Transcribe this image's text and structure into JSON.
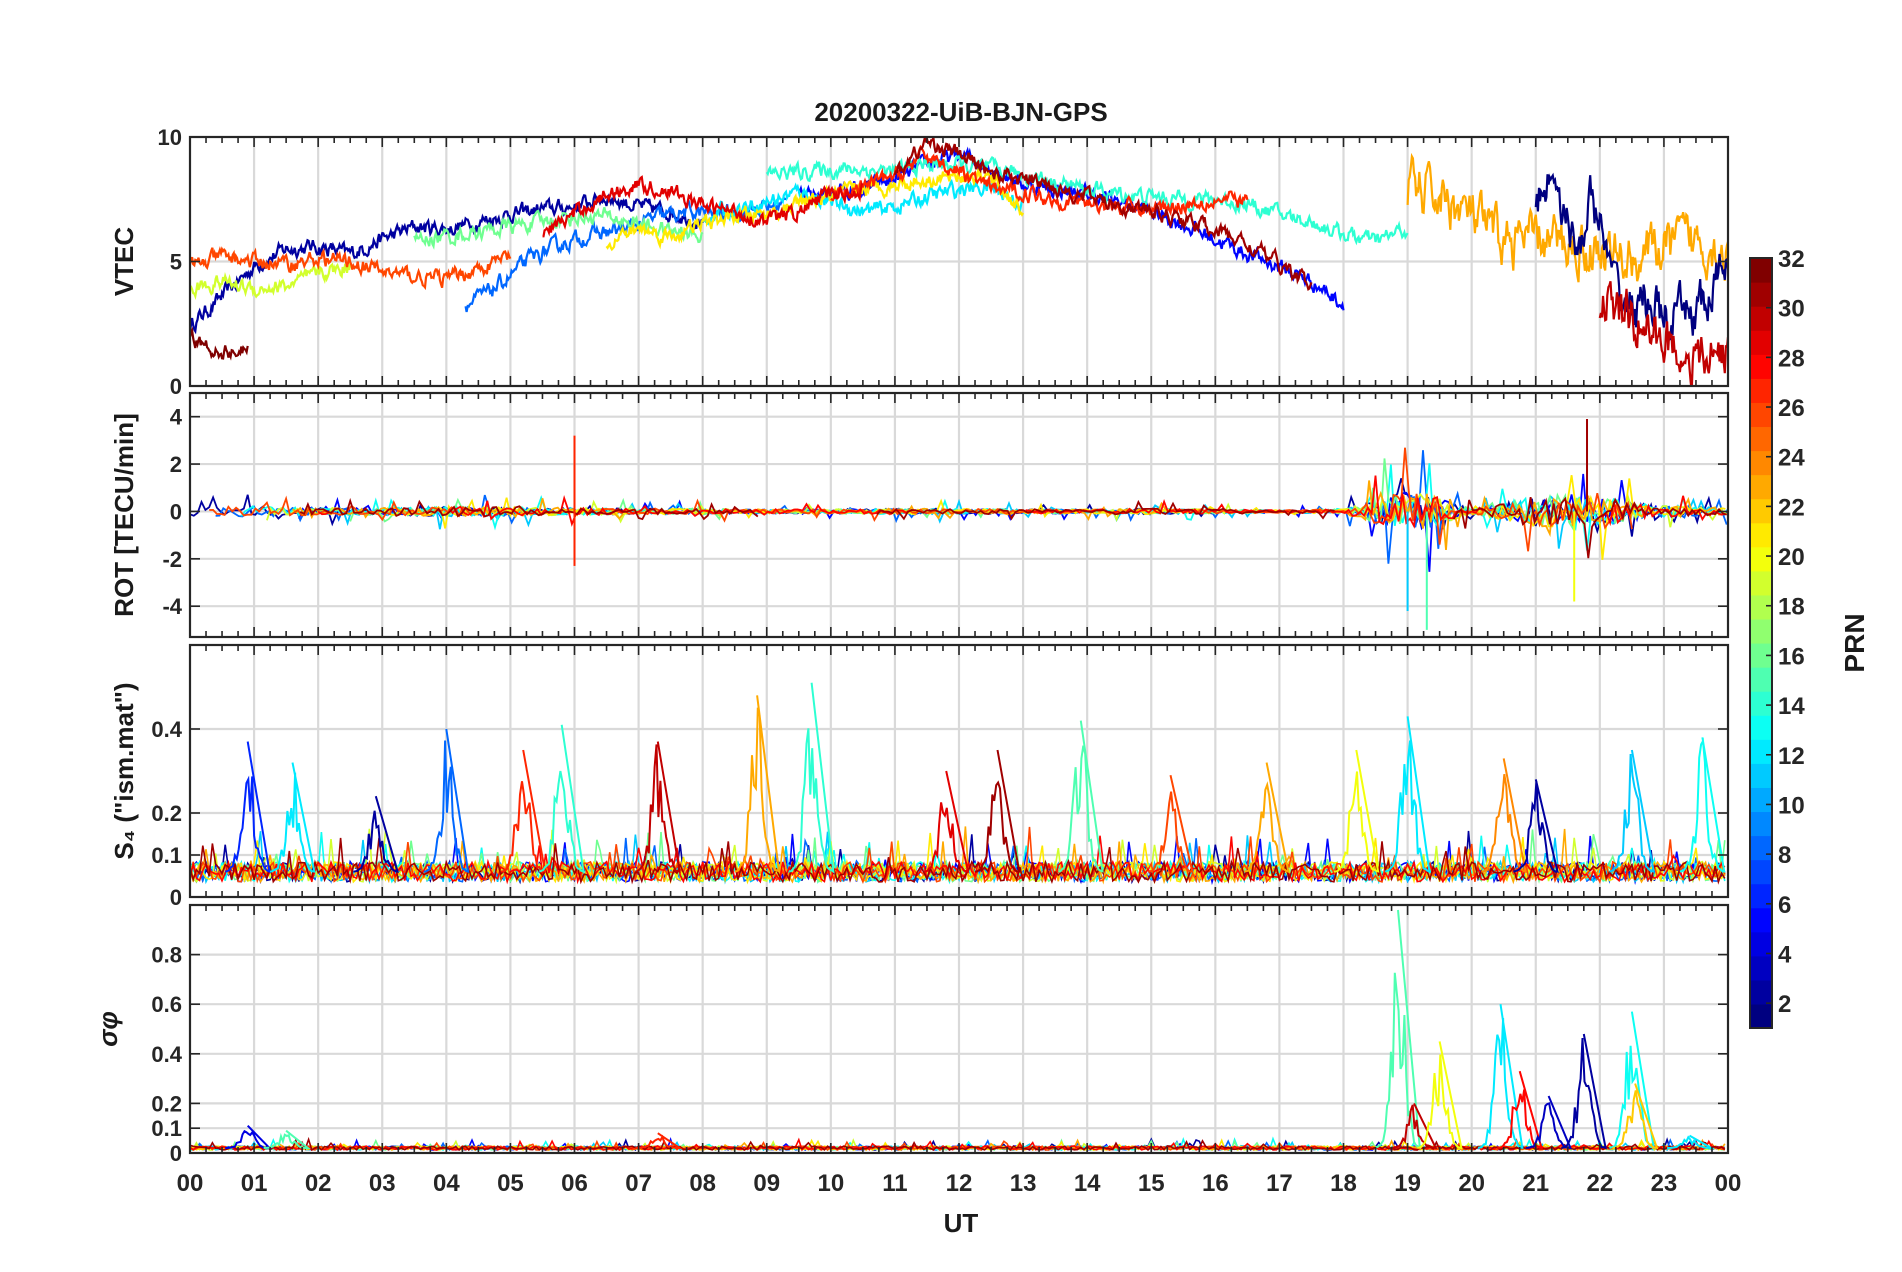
{
  "chart_data": {
    "type": "line",
    "title": "20200322-UiB-BJN-GPS",
    "xlabel": "UT",
    "x_range": [
      0,
      24
    ],
    "x_tick_labels": [
      "00",
      "01",
      "02",
      "03",
      "04",
      "05",
      "06",
      "07",
      "08",
      "09",
      "10",
      "11",
      "12",
      "13",
      "14",
      "15",
      "16",
      "17",
      "18",
      "19",
      "20",
      "21",
      "22",
      "23",
      "00"
    ],
    "colorbar": {
      "label": "PRN",
      "colormap": "jet",
      "range": [
        1,
        32
      ],
      "tick_labels": [
        "32",
        "30",
        "28",
        "26",
        "24",
        "22",
        "20",
        "18",
        "16",
        "14",
        "12",
        "10",
        "8",
        "6",
        "4",
        "2"
      ]
    },
    "panels": [
      {
        "id": "vtec",
        "ylabel": "VTEC",
        "ylim": [
          0,
          10
        ],
        "yticks": [
          0,
          5,
          10
        ],
        "ytick_labels": [
          "0",
          "5",
          "10"
        ],
        "series": [
          {
            "name": "PRN 2",
            "prn": 2,
            "hours": [
              0.0,
              0.5,
              1.0,
              1.5,
              2.0,
              2.5,
              3.0,
              3.5,
              4.0,
              4.5,
              5.0,
              5.5,
              6.0,
              6.5,
              7.0,
              7.5,
              8.0
            ],
            "values": [
              2.4,
              3.6,
              4.8,
              5.5,
              5.6,
              5.3,
              5.9,
              6.4,
              6.3,
              6.6,
              6.9,
              7.1,
              7.2,
              7.6,
              7.2,
              7.0,
              6.6
            ]
          },
          {
            "name": "PRN 5",
            "prn": 5,
            "hours": [
              9.5,
              10.0,
              10.5,
              11.0,
              11.5,
              12.0,
              12.5,
              13.0,
              13.5,
              14.0,
              14.5,
              15.0,
              15.5,
              16.0,
              16.5,
              17.0,
              17.5,
              18.0
            ],
            "values": [
              7.5,
              7.8,
              7.9,
              8.3,
              8.9,
              9.3,
              8.8,
              8.1,
              7.9,
              7.7,
              7.4,
              7.0,
              6.5,
              5.9,
              5.3,
              4.8,
              4.2,
              3.3
            ]
          },
          {
            "name": "PRN 8",
            "prn": 8,
            "hours": [
              4.3,
              4.8,
              5.3,
              5.8,
              6.3,
              6.8,
              7.3,
              7.8,
              8.3,
              8.8,
              9.3
            ],
            "values": [
              3.2,
              4.0,
              5.1,
              5.7,
              6.1,
              6.3,
              6.8,
              7.0,
              6.9,
              7.1,
              7.3
            ]
          },
          {
            "name": "PRN 12",
            "prn": 12,
            "hours": [
              8.0,
              8.5,
              9.0,
              9.5,
              10.0,
              10.5,
              11.0,
              11.5,
              12.0,
              12.5,
              13.0
            ],
            "values": [
              6.8,
              7.1,
              7.4,
              7.8,
              7.4,
              7.0,
              7.2,
              7.6,
              7.9,
              8.0,
              7.3
            ]
          },
          {
            "name": "PRN 14",
            "prn": 14,
            "hours": [
              9.0,
              9.5,
              10.0,
              10.5,
              11.0,
              11.5,
              12.0,
              12.5,
              13.0,
              13.5,
              14.0,
              14.5,
              15.0,
              15.5,
              16.0,
              16.5,
              17.0,
              17.5,
              18.0,
              18.5,
              19.0
            ],
            "values": [
              8.5,
              8.6,
              8.7,
              8.7,
              8.6,
              8.9,
              8.9,
              8.7,
              8.5,
              8.2,
              7.9,
              7.7,
              7.6,
              7.5,
              7.5,
              7.3,
              6.9,
              6.6,
              6.1,
              5.8,
              6.3
            ]
          },
          {
            "name": "PRN 16",
            "prn": 16,
            "hours": [
              3.5,
              4.0,
              4.5,
              5.0,
              5.5,
              6.0,
              6.5,
              7.0,
              7.5,
              8.0
            ],
            "values": [
              5.8,
              6.0,
              6.2,
              6.4,
              6.6,
              6.8,
              6.8,
              6.5,
              6.2,
              6.0
            ]
          },
          {
            "name": "PRN 19",
            "prn": 19,
            "hours": [
              0.0,
              0.5,
              1.0,
              1.5,
              2.0,
              2.5
            ],
            "values": [
              3.9,
              4.2,
              3.9,
              4.0,
              4.5,
              4.8
            ]
          },
          {
            "name": "PRN 21",
            "prn": 21,
            "hours": [
              6.5,
              7.0,
              7.5,
              8.0,
              8.5,
              9.0,
              9.5,
              10.0,
              10.5,
              11.0,
              11.5,
              12.0,
              12.5,
              13.0
            ],
            "values": [
              5.8,
              6.3,
              6.0,
              6.5,
              6.8,
              6.9,
              7.3,
              7.6,
              7.9,
              8.1,
              8.3,
              8.5,
              8.3,
              7.0
            ]
          },
          {
            "name": "PRN 23",
            "prn": 23,
            "hours": [
              19.0,
              19.5,
              20.0,
              20.5,
              21.0,
              21.5,
              22.0,
              22.5,
              23.0,
              23.5,
              24.0
            ],
            "values": [
              8.0,
              7.6,
              6.8,
              5.8,
              5.9,
              5.7,
              5.4,
              5.1,
              5.6,
              5.9,
              5.4
            ]
          },
          {
            "name": "PRN 26",
            "prn": 26,
            "hours": [
              0.0,
              0.5,
              1.0,
              1.5,
              2.0,
              2.5,
              3.0,
              3.5,
              4.0,
              4.5,
              5.0
            ],
            "values": [
              4.8,
              5.2,
              5.0,
              4.9,
              5.1,
              5.0,
              4.6,
              4.4,
              4.3,
              4.7,
              5.2
            ]
          },
          {
            "name": "PRN 27",
            "prn": 27,
            "hours": [
              10.0,
              10.5,
              11.0,
              11.5,
              12.0,
              12.5,
              13.0,
              13.5,
              14.0,
              14.5,
              15.0,
              15.5,
              16.0,
              16.5
            ],
            "values": [
              7.5,
              8.0,
              8.4,
              9.3,
              8.6,
              7.9,
              7.8,
              7.5,
              7.4,
              7.2,
              7.1,
              7.3,
              7.5,
              7.4
            ]
          },
          {
            "name": "PRN 29",
            "prn": 29,
            "hours": [
              5.5,
              6.0,
              6.5,
              7.0,
              7.5,
              8.0,
              8.5,
              9.0,
              9.5,
              10.0,
              10.5
            ],
            "values": [
              6.1,
              6.9,
              7.7,
              8.1,
              7.8,
              7.2,
              7.0,
              6.6,
              7.0,
              7.7,
              7.9
            ]
          },
          {
            "name": "PRN 31",
            "prn": 31,
            "hours": [
              11.0,
              11.5,
              12.0,
              12.5,
              13.0,
              13.5,
              14.0,
              14.5,
              15.0,
              15.5,
              16.0,
              16.5,
              17.0,
              17.5
            ],
            "values": [
              8.5,
              9.8,
              9.3,
              8.6,
              8.3,
              8.0,
              7.6,
              7.3,
              7.0,
              6.7,
              6.3,
              5.7,
              4.9,
              4.0
            ]
          },
          {
            "name": "PRN 32",
            "prn": 32,
            "hours": [
              0.0,
              0.3,
              0.6,
              0.9
            ],
            "values": [
              1.9,
              1.5,
              1.4,
              1.4
            ]
          },
          {
            "name": "PRN 1",
            "prn": 1,
            "hours": [
              21.0,
              21.3,
              21.6,
              21.9,
              22.2,
              22.5,
              22.8,
              23.1,
              23.4,
              23.7,
              24.0
            ],
            "values": [
              7.5,
              8.8,
              5.3,
              7.6,
              4.0,
              3.1,
              3.5,
              2.4,
              3.0,
              3.3,
              5.2
            ]
          },
          {
            "name": "PRN 30",
            "prn": 30,
            "hours": [
              22.0,
              22.3,
              22.6,
              22.9,
              23.2,
              23.5,
              23.8,
              24.0
            ],
            "values": [
              3.5,
              3.0,
              2.5,
              2.0,
              1.5,
              1.0,
              1.2,
              1.7
            ]
          }
        ]
      },
      {
        "id": "rot",
        "ylabel": "ROT [TECU/min]",
        "ylim": [
          -5.3,
          5.0
        ],
        "yticks": [
          -4,
          -2,
          0,
          2,
          4
        ],
        "ytick_labels": [
          "-4",
          "-2",
          "0",
          "2",
          "4"
        ],
        "activity_profile": {
          "hours": [
            0,
            1,
            2,
            3,
            4,
            5,
            6,
            7,
            8,
            9,
            10,
            11,
            12,
            13,
            14,
            15,
            16,
            17,
            18,
            18.8,
            19.2,
            19.6,
            20,
            20.5,
            21,
            21.5,
            22,
            22.5,
            23,
            24
          ],
          "amplitude": [
            0.6,
            0.8,
            0.5,
            0.5,
            0.7,
            0.6,
            0.5,
            0.4,
            0.4,
            0.3,
            0.3,
            0.4,
            0.4,
            0.3,
            0.3,
            0.4,
            0.3,
            0.2,
            0.3,
            2.5,
            3.0,
            1.5,
            0.4,
            1.2,
            2.2,
            2.5,
            2.2,
            1.2,
            0.8,
            0.5
          ]
        }
      },
      {
        "id": "s4",
        "ylabel": "S₄ (\"ism.mat\")",
        "ylim": [
          0,
          0.6
        ],
        "yticks": [
          0,
          0.1,
          0.2,
          0.4
        ],
        "ytick_labels": [
          "0",
          "0.1",
          "0.2",
          "0.4"
        ],
        "background_level": 0.06,
        "peaks": [
          {
            "hour": 0.9,
            "value": 0.37,
            "prn": 6
          },
          {
            "hour": 1.6,
            "value": 0.32,
            "prn": 12
          },
          {
            "hour": 2.9,
            "value": 0.24,
            "prn": 2
          },
          {
            "hour": 4.0,
            "value": 0.4,
            "prn": 8
          },
          {
            "hour": 5.2,
            "value": 0.35,
            "prn": 27
          },
          {
            "hour": 5.8,
            "value": 0.41,
            "prn": 14
          },
          {
            "hour": 7.3,
            "value": 0.37,
            "prn": 30
          },
          {
            "hour": 8.85,
            "value": 0.48,
            "prn": 23
          },
          {
            "hour": 9.7,
            "value": 0.51,
            "prn": 14
          },
          {
            "hour": 11.8,
            "value": 0.3,
            "prn": 29
          },
          {
            "hour": 12.6,
            "value": 0.35,
            "prn": 31
          },
          {
            "hour": 13.9,
            "value": 0.42,
            "prn": 15
          },
          {
            "hour": 15.3,
            "value": 0.29,
            "prn": 26
          },
          {
            "hour": 16.8,
            "value": 0.32,
            "prn": 23
          },
          {
            "hour": 18.2,
            "value": 0.35,
            "prn": 20
          },
          {
            "hour": 19.0,
            "value": 0.43,
            "prn": 12
          },
          {
            "hour": 20.5,
            "value": 0.33,
            "prn": 24
          },
          {
            "hour": 21.0,
            "value": 0.28,
            "prn": 2
          },
          {
            "hour": 22.5,
            "value": 0.35,
            "prn": 11
          },
          {
            "hour": 23.6,
            "value": 0.38,
            "prn": 13
          }
        ]
      },
      {
        "id": "sigma_phi",
        "ylabel": "σφ",
        "ylim": [
          0,
          1.0
        ],
        "yticks": [
          0,
          0.1,
          0.2,
          0.4,
          0.6,
          0.8
        ],
        "ytick_labels": [
          "0",
          "0.1",
          "0.2",
          "0.4",
          "0.6",
          "0.8"
        ],
        "background_level": 0.02,
        "peaks": [
          {
            "hour": 0.9,
            "value": 0.11,
            "prn": 4
          },
          {
            "hour": 1.5,
            "value": 0.09,
            "prn": 15
          },
          {
            "hour": 7.3,
            "value": 0.08,
            "prn": 27
          },
          {
            "hour": 18.85,
            "value": 0.98,
            "prn": 15
          },
          {
            "hour": 19.1,
            "value": 0.2,
            "prn": 30
          },
          {
            "hour": 19.5,
            "value": 0.45,
            "prn": 20
          },
          {
            "hour": 20.45,
            "value": 0.6,
            "prn": 12
          },
          {
            "hour": 20.75,
            "value": 0.33,
            "prn": 28
          },
          {
            "hour": 21.2,
            "value": 0.23,
            "prn": 3
          },
          {
            "hour": 21.75,
            "value": 0.48,
            "prn": 2
          },
          {
            "hour": 22.5,
            "value": 0.57,
            "prn": 13
          },
          {
            "hour": 22.55,
            "value": 0.28,
            "prn": 22
          },
          {
            "hour": 23.4,
            "value": 0.07,
            "prn": 12
          }
        ]
      }
    ]
  }
}
